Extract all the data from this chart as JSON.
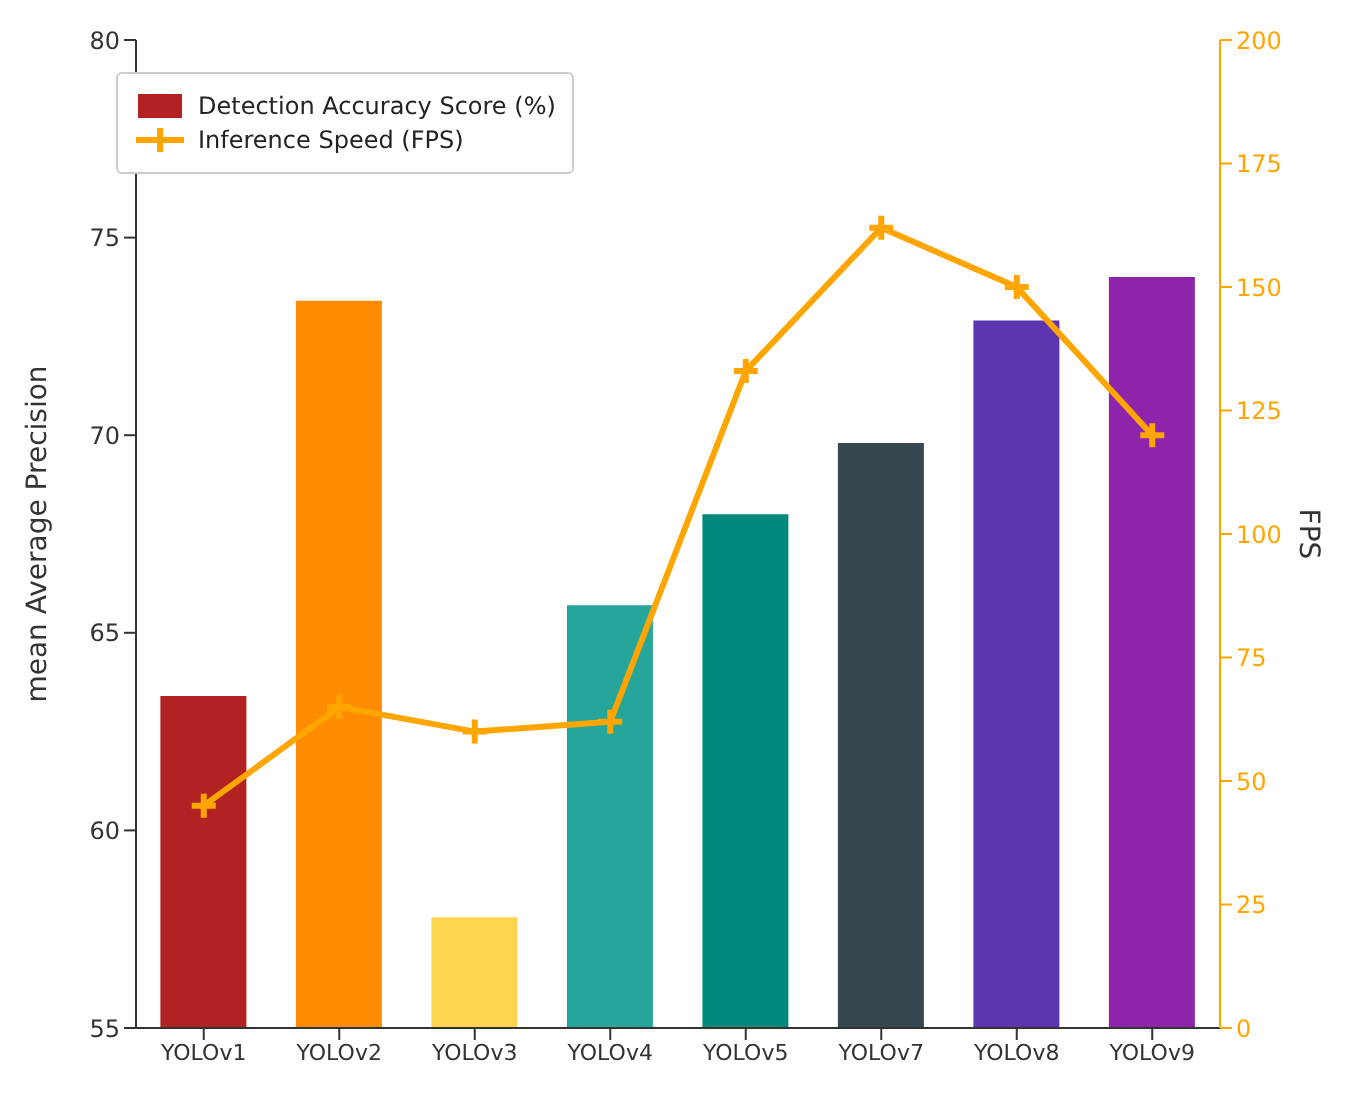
{
  "chart_data": {
    "type": "bar",
    "ylabel": "mean Average Precision",
    "y2label": "FPS",
    "categories": [
      "YOLOv1",
      "YOLOv2",
      "YOLOv3",
      "YOLOv4",
      "YOLOv5",
      "YOLOv7",
      "YOLOv8",
      "YOLOv9"
    ],
    "series": [
      {
        "name": "Detection Accuracy Score (%)",
        "color": "#b22222",
        "colors": [
          "#b22222",
          "#ff8c00",
          "#ffd54f",
          "#26a69a",
          "#00897b",
          "#37474f",
          "#5e35b1",
          "#8e24aa"
        ],
        "values": [
          63.4,
          73.4,
          57.8,
          65.7,
          68.0,
          69.8,
          72.9,
          74.0
        ]
      },
      {
        "name": "Inference Speed (FPS)",
        "type": "line",
        "axis": "y2",
        "color": "#ffa500",
        "marker": "cross",
        "values": [
          45,
          65,
          60,
          62,
          133,
          162,
          150,
          120
        ]
      }
    ],
    "ylim": [
      55,
      80
    ],
    "yticks": [
      55,
      60,
      65,
      70,
      75,
      80
    ],
    "y2lim": [
      0,
      200
    ],
    "y2ticks": [
      0,
      25,
      50,
      75,
      100,
      125,
      150,
      175,
      200
    ],
    "grid": false,
    "legend": "top left"
  }
}
